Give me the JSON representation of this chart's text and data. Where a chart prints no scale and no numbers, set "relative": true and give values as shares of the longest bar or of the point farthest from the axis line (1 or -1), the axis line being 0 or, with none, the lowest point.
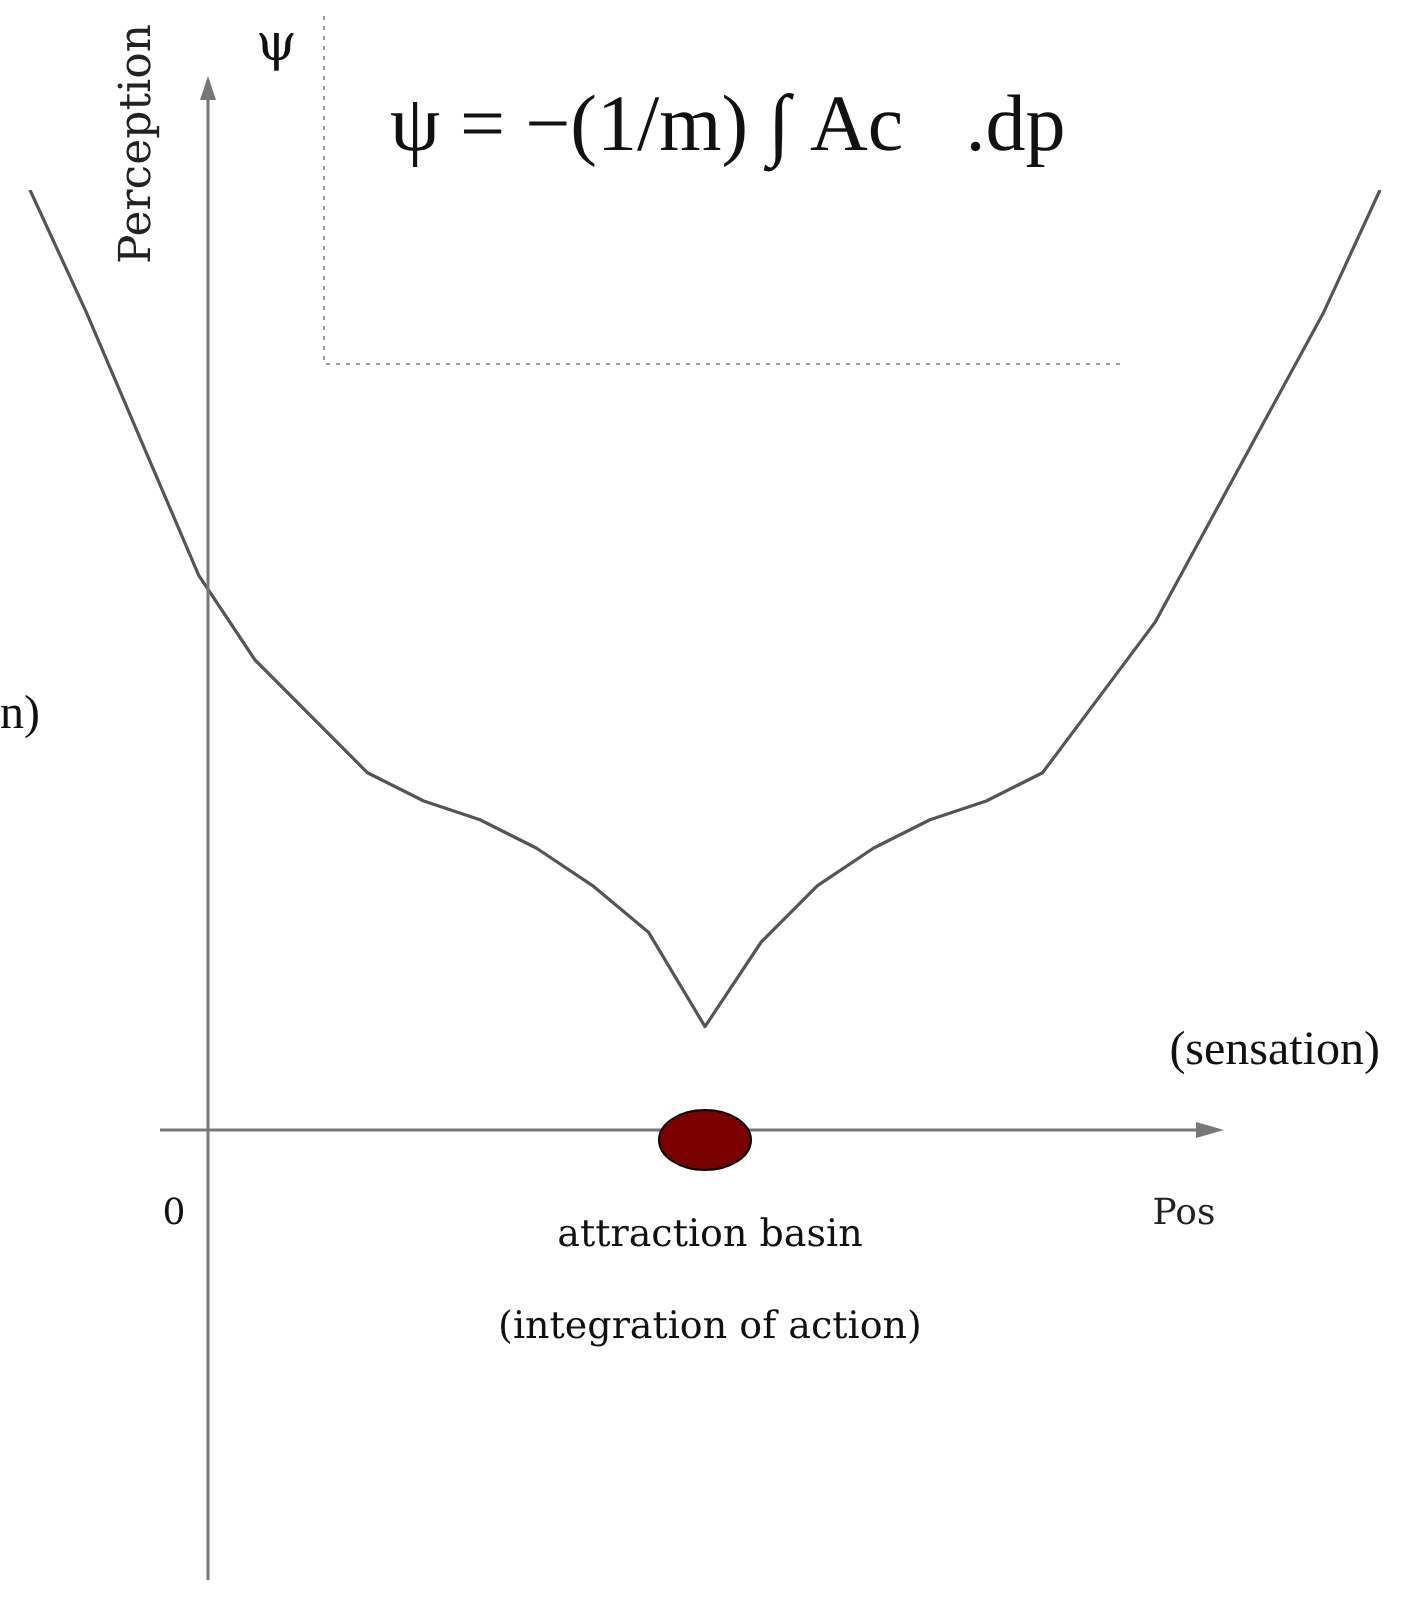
{
  "chart_data": {
    "type": "line",
    "relative": true,
    "xlabel": "Pos",
    "ylabel": "Perception",
    "categories": [
      null,
      null,
      null,
      null,
      null,
      null,
      null,
      null,
      null,
      null,
      null,
      null,
      null,
      null,
      null,
      null,
      null,
      null,
      null,
      null,
      null,
      null,
      null,
      null,
      null
    ],
    "series": [
      {
        "color": "#555555",
        "values": [
          1.0,
          0.87,
          0.73,
          0.59,
          0.5,
          0.44,
          0.38,
          0.35,
          0.33,
          0.3,
          0.26,
          0.21,
          0.11,
          0.2,
          0.26,
          0.3,
          0.33,
          0.35,
          0.38,
          0.46,
          0.54,
          0.65,
          0.76,
          0.87,
          1.0
        ]
      }
    ],
    "annotations": [
      "ψ",
      "ψ = −(1/m) ∫ Ac⃗.dp⃗",
      "(sensation)",
      "n)",
      "0",
      "attraction basin",
      "(integration of action)"
    ],
    "marker": "none"
  }
}
